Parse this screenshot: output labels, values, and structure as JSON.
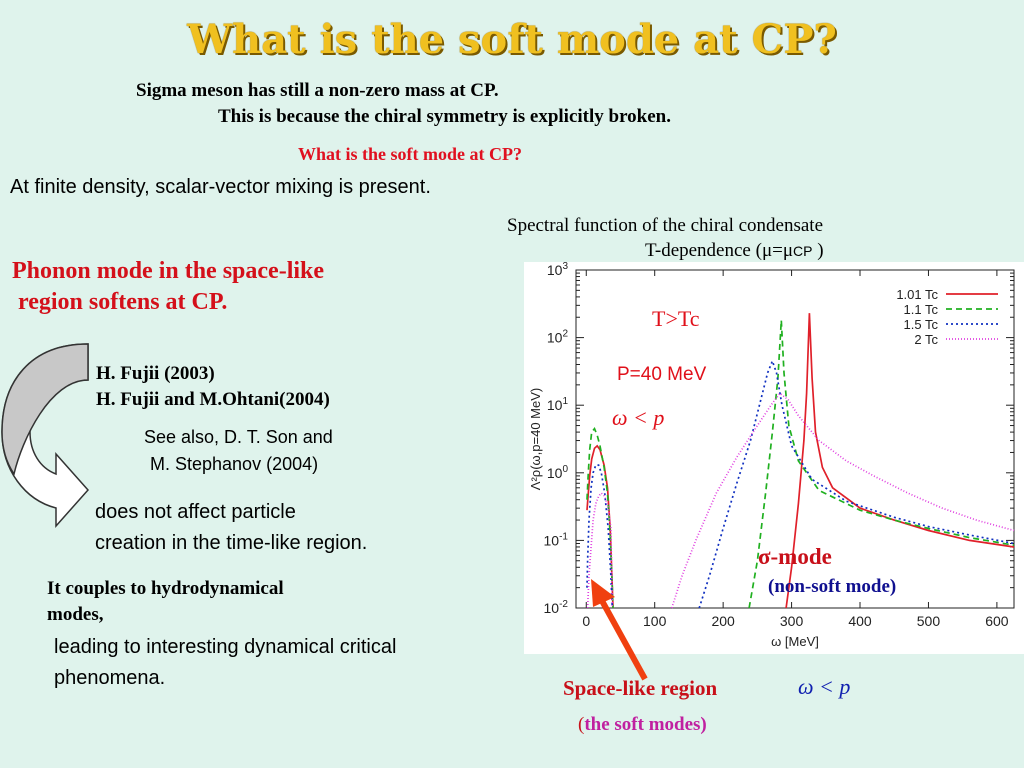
{
  "slide": {
    "title": "What is the soft mode at CP?",
    "line1": "Sigma meson has still a non-zero mass at CP.",
    "line2": "This is because the chiral  symmetry is explicitly broken.",
    "subtitle_red": "What is the soft mode at CP?",
    "mixing": "At finite density, scalar-vector mixing is present.",
    "phonon_line1": "Phonon mode in the space-like",
    "phonon_line2": "region softens at CP.",
    "ref1": "H. Fujii (2003)",
    "ref2": "H. Fujii and M.Ohtani(2004)",
    "see_also1": "See also, D. T. Son and",
    "see_also2": "M. Stephanov (2004)",
    "not_affect1": "does not affect particle",
    "not_affect2": "creation in the time-like region.",
    "couples1": "It couples to hydrodynamical",
    "couples2": "modes,",
    "leading1": "leading to interesting dynamical critical",
    "leading2": "phenomena.",
    "spectral_title": "Spectral function of the chiral condensate",
    "tdep_prefix": "T-dependence (",
    "tdep_mu": "μ=μ",
    "tdep_cp": "CP",
    "tdep_suffix": " )",
    "sigma_mode": "σ-mode",
    "non_soft": "(non-soft mode)",
    "space_like": "Space-like region",
    "omega_p": "ω < p",
    "soft_open": "(",
    "soft_modes": "the soft modes)"
  },
  "chart_data": {
    "type": "line",
    "xlabel": "ω [MeV]",
    "ylabel": "Λ²ρ(ω,p=40 MeV)",
    "xlim": [
      -15,
      625
    ],
    "ylim": [
      0.01,
      1000
    ],
    "yscale": "log",
    "xticks": [
      "0",
      "100",
      "200",
      "300",
      "400",
      "500",
      "600"
    ],
    "yticks": [
      "10-2",
      "10-1",
      "100",
      "101",
      "102",
      "103"
    ],
    "annotations": [
      "T>Tc",
      "P=40 MeV",
      "ω < p"
    ],
    "legend_position": "top-right",
    "series": [
      {
        "name": "1.01 Tc",
        "color": "#e0202a",
        "dash": "solid",
        "points": [
          [
            1,
            0.28
          ],
          [
            3,
            0.5
          ],
          [
            5,
            0.9
          ],
          [
            8,
            1.6
          ],
          [
            12,
            2.3
          ],
          [
            16,
            2.5
          ],
          [
            20,
            2.2
          ],
          [
            26,
            1.3
          ],
          [
            31,
            0.6
          ],
          [
            35,
            0.15
          ],
          [
            38,
            0.02
          ],
          [
            39,
            0.01
          ],
          [
            292,
            0.01
          ],
          [
            300,
            0.04
          ],
          [
            310,
            0.35
          ],
          [
            318,
            3
          ],
          [
            322,
            15
          ],
          [
            326,
            230
          ],
          [
            330,
            25
          ],
          [
            335,
            4
          ],
          [
            345,
            1.2
          ],
          [
            360,
            0.6
          ],
          [
            400,
            0.3
          ],
          [
            450,
            0.2
          ],
          [
            500,
            0.14
          ],
          [
            560,
            0.1
          ],
          [
            625,
            0.08
          ]
        ]
      },
      {
        "name": "1.1 Tc",
        "color": "#20b020",
        "dash": "6,4",
        "points": [
          [
            1,
            0.4
          ],
          [
            3,
            1.0
          ],
          [
            5,
            2.2
          ],
          [
            8,
            4.0
          ],
          [
            12,
            4.5
          ],
          [
            16,
            3.6
          ],
          [
            20,
            2.5
          ],
          [
            26,
            1.2
          ],
          [
            31,
            0.5
          ],
          [
            35,
            0.12
          ],
          [
            38,
            0.02
          ],
          [
            39,
            0.01
          ],
          [
            238,
            0.01
          ],
          [
            250,
            0.05
          ],
          [
            262,
            0.5
          ],
          [
            272,
            4
          ],
          [
            280,
            25
          ],
          [
            285,
            180
          ],
          [
            289,
            30
          ],
          [
            296,
            5
          ],
          [
            310,
            1.5
          ],
          [
            340,
            0.55
          ],
          [
            400,
            0.28
          ],
          [
            450,
            0.2
          ],
          [
            500,
            0.15
          ],
          [
            560,
            0.11
          ],
          [
            625,
            0.085
          ]
        ]
      },
      {
        "name": "1.5 Tc",
        "color": "#1030c0",
        "dash": "2,3",
        "points": [
          [
            1,
            0.02
          ],
          [
            2,
            0.05
          ],
          [
            4,
            0.2
          ],
          [
            7,
            0.6
          ],
          [
            10,
            1.0
          ],
          [
            14,
            1.3
          ],
          [
            18,
            1.3
          ],
          [
            22,
            1.0
          ],
          [
            27,
            0.5
          ],
          [
            32,
            0.15
          ],
          [
            36,
            0.03
          ],
          [
            38,
            0.01
          ],
          [
            165,
            0.01
          ],
          [
            180,
            0.03
          ],
          [
            200,
            0.15
          ],
          [
            220,
            0.7
          ],
          [
            240,
            3
          ],
          [
            255,
            12
          ],
          [
            265,
            30
          ],
          [
            272,
            45
          ],
          [
            278,
            30
          ],
          [
            286,
            10
          ],
          [
            300,
            2.5
          ],
          [
            330,
            0.8
          ],
          [
            380,
            0.38
          ],
          [
            450,
            0.22
          ],
          [
            500,
            0.16
          ],
          [
            560,
            0.12
          ],
          [
            625,
            0.09
          ]
        ]
      },
      {
        "name": "2 Tc",
        "color": "#e040e0",
        "dash": "1,2",
        "points": [
          [
            2,
            0.01
          ],
          [
            4,
            0.03
          ],
          [
            7,
            0.08
          ],
          [
            10,
            0.2
          ],
          [
            14,
            0.35
          ],
          [
            18,
            0.45
          ],
          [
            22,
            0.5
          ],
          [
            27,
            0.45
          ],
          [
            32,
            0.3
          ],
          [
            36,
            0.15
          ],
          [
            38,
            0.01
          ],
          [
            125,
            0.01
          ],
          [
            140,
            0.03
          ],
          [
            160,
            0.1
          ],
          [
            190,
            0.5
          ],
          [
            220,
            1.7
          ],
          [
            250,
            5
          ],
          [
            270,
            10
          ],
          [
            283,
            15
          ],
          [
            295,
            12
          ],
          [
            310,
            7
          ],
          [
            340,
            3
          ],
          [
            380,
            1.5
          ],
          [
            420,
            0.9
          ],
          [
            470,
            0.5
          ],
          [
            520,
            0.3
          ],
          [
            570,
            0.2
          ],
          [
            625,
            0.14
          ]
        ]
      }
    ]
  }
}
